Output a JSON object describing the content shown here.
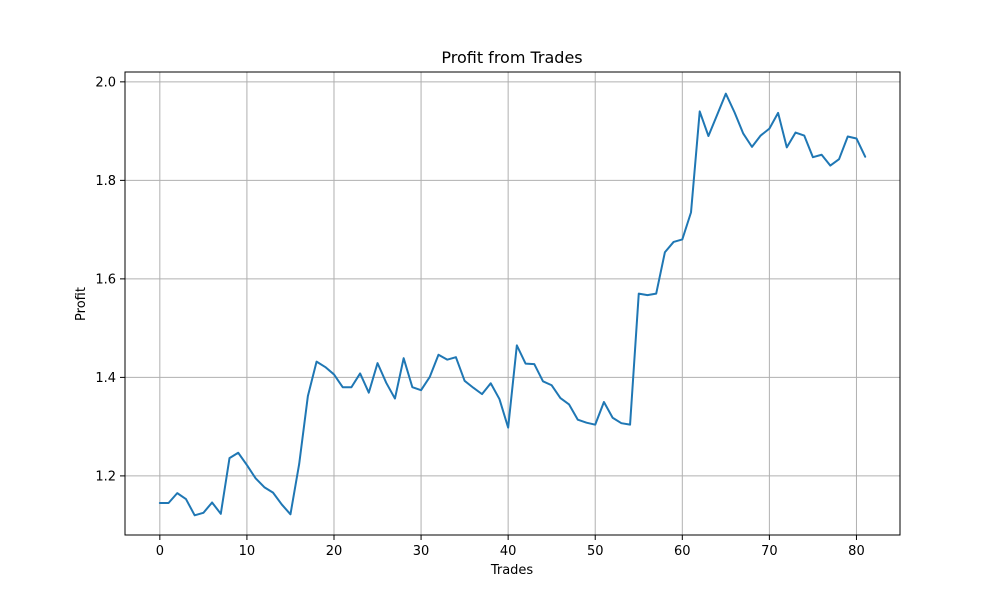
{
  "chart_data": {
    "type": "line",
    "title": "Profit from Trades",
    "xlabel": "Trades",
    "ylabel": "Profit",
    "xlim": [
      -4,
      85
    ],
    "ylim": [
      1.08,
      2.02
    ],
    "xticks": [
      0,
      10,
      20,
      30,
      40,
      50,
      60,
      70,
      80
    ],
    "yticks": [
      1.2,
      1.4,
      1.6,
      1.8,
      2.0
    ],
    "ytick_labels": [
      "1.2",
      "1.4",
      "1.6",
      "1.8",
      "2.0"
    ],
    "grid": true,
    "line_color": "#1f77b4",
    "series": [
      {
        "x": [
          0,
          1,
          2,
          3,
          4,
          5,
          6,
          7,
          8,
          9,
          10,
          11,
          12,
          13,
          14,
          15,
          16,
          17,
          18,
          19,
          20,
          21,
          22,
          23,
          24,
          25,
          26,
          27,
          28,
          29,
          30,
          31,
          32,
          33,
          34,
          35,
          36,
          37,
          38,
          39,
          40,
          41,
          42,
          43,
          44,
          45,
          46,
          47,
          48,
          49,
          50,
          51,
          52,
          53,
          54,
          55,
          56,
          57,
          58,
          59,
          60,
          61,
          62,
          63,
          64,
          65,
          66,
          67,
          68,
          69,
          70,
          71,
          72,
          73,
          74,
          75,
          76,
          77,
          78,
          79,
          80,
          81
        ],
        "values": [
          1.145,
          1.145,
          1.165,
          1.153,
          1.12,
          1.125,
          1.146,
          1.123,
          1.236,
          1.247,
          1.222,
          1.195,
          1.177,
          1.166,
          1.142,
          1.122,
          1.224,
          1.362,
          1.432,
          1.421,
          1.406,
          1.38,
          1.38,
          1.408,
          1.369,
          1.429,
          1.389,
          1.357,
          1.439,
          1.38,
          1.374,
          1.401,
          1.446,
          1.436,
          1.441,
          1.393,
          1.379,
          1.366,
          1.388,
          1.356,
          1.298,
          1.465,
          1.428,
          1.427,
          1.392,
          1.384,
          1.358,
          1.345,
          1.314,
          1.308,
          1.304,
          1.35,
          1.318,
          1.307,
          1.304,
          1.57,
          1.567,
          1.57,
          1.654,
          1.675,
          1.68,
          1.735,
          1.94,
          1.89,
          1.933,
          1.976,
          1.938,
          1.895,
          1.868,
          1.891,
          1.905,
          1.937,
          1.867,
          1.897,
          1.891,
          1.847,
          1.852,
          1.83,
          1.843,
          1.889,
          1.885,
          1.848
        ]
      }
    ]
  }
}
